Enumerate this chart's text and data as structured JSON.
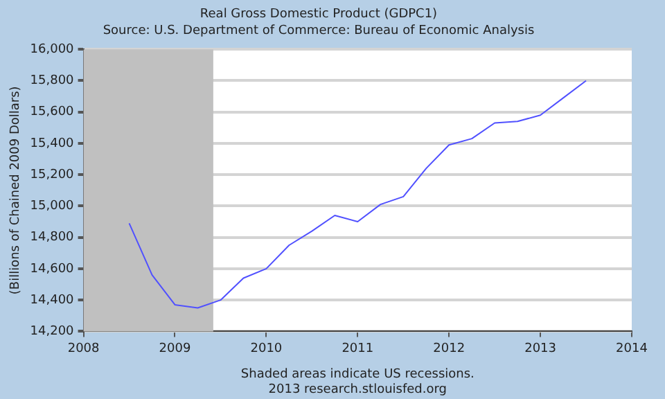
{
  "chart_data": {
    "type": "line",
    "title": "Real Gross Domestic Product (GDPC1)",
    "subtitle": "Source: U.S. Department of Commerce: Bureau of Economic Analysis",
    "ylabel": "(Billions of Chained 2009 Dollars)",
    "annotations": [
      "Shaded areas indicate US recessions.",
      "2013 research.stlouisfed.org"
    ],
    "x": [
      2008.5,
      2008.75,
      2009,
      2009.25,
      2009.5,
      2009.75,
      2010,
      2010.25,
      2010.5,
      2010.75,
      2011,
      2011.25,
      2011.5,
      2011.75,
      2012,
      2012.25,
      2012.5,
      2012.75,
      2013,
      2013.25,
      2013.5
    ],
    "series": [
      {
        "color": "#5050ff",
        "values": [
          14890,
          14560,
          14370,
          14350,
          14400,
          14540,
          14600,
          14750,
          14840,
          14940,
          14900,
          15010,
          15060,
          15240,
          15390,
          15430,
          15530,
          15540,
          15580,
          15690,
          15800
        ]
      }
    ],
    "xlim": [
      2008,
      2014
    ],
    "xticks": [
      2008,
      2009,
      2010,
      2011,
      2012,
      2013,
      2014
    ],
    "ylim": [
      14200,
      16000
    ],
    "yticks": [
      {
        "value": 14200,
        "label": "14,200"
      },
      {
        "value": 14400,
        "label": "14,400"
      },
      {
        "value": 14600,
        "label": "14,600"
      },
      {
        "value": 14800,
        "label": "14,800"
      },
      {
        "value": 15000,
        "label": "15,000"
      },
      {
        "value": 15200,
        "label": "15,200"
      },
      {
        "value": 15400,
        "label": "15,400"
      },
      {
        "value": 15600,
        "label": "15,600"
      },
      {
        "value": 15800,
        "label": "15,800"
      },
      {
        "value": 16000,
        "label": "16,000"
      }
    ],
    "bands": [
      {
        "axis": "x",
        "from": 2008,
        "to": 2009.42,
        "color": "#c0c0c0"
      }
    ],
    "grid": "y",
    "legend": false,
    "marker": "none",
    "line_style": "solid"
  }
}
